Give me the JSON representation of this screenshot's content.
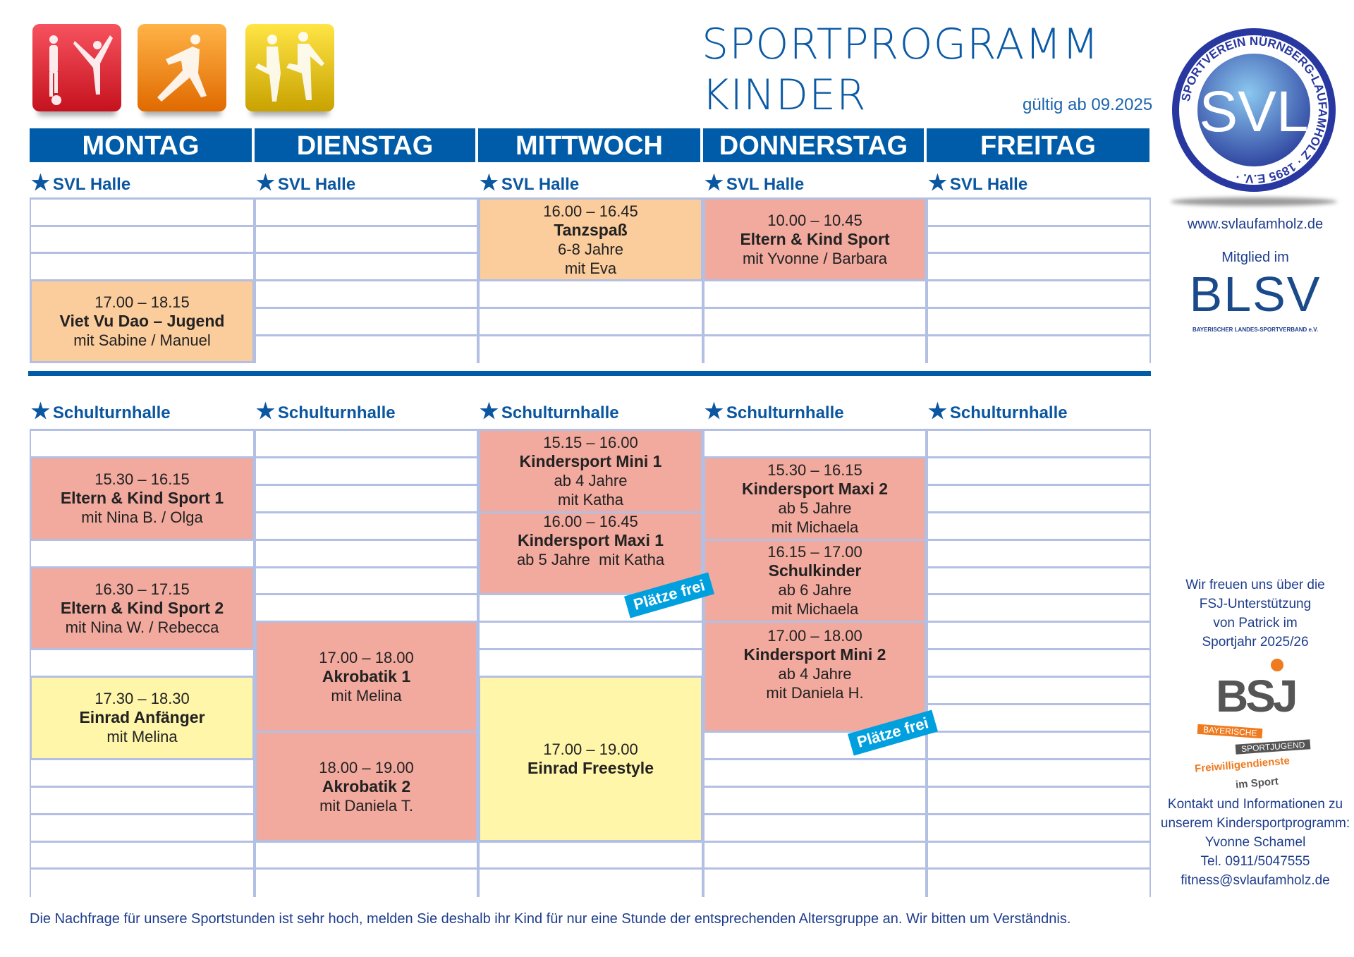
{
  "header": {
    "title_line1": "SPORTPROGRAMM",
    "title_line2": "KINDER",
    "valid_from": "gültig ab 09.2025"
  },
  "days": [
    "MONTAG",
    "DIENSTAG",
    "MITTWOCH",
    "DONNERSTAG",
    "FREITAG"
  ],
  "venues": {
    "upper": "SVL Halle",
    "lower": "Schulturnhalle"
  },
  "colors": {
    "header_blue": "#005ca8",
    "salmon": "#f2a99e",
    "peach": "#fbcc9c",
    "yellow": "#fff6aa",
    "badge": "#00a0de"
  },
  "upper_events": [
    {
      "day": "MONTAG",
      "time": "17.00 – 18.15",
      "name": "Viet Vu Dao – Jugend",
      "lines": [
        "mit Sabine / Manuel"
      ],
      "color": "peach"
    },
    {
      "day": "MITTWOCH",
      "time": "16.00 – 16.45",
      "name": "Tanzspaß",
      "lines": [
        "6-8 Jahre",
        "mit Eva"
      ],
      "color": "peach"
    },
    {
      "day": "DONNERSTAG",
      "time": "10.00 – 10.45",
      "name": "Eltern & Kind Sport",
      "lines": [
        "mit Yvonne / Barbara"
      ],
      "color": "salmon"
    }
  ],
  "lower_events": [
    {
      "day": "MONTAG",
      "time": "15.30 – 16.15",
      "name": "Eltern & Kind Sport 1",
      "lines": [
        "mit Nina B. / Olga"
      ],
      "color": "salmon"
    },
    {
      "day": "MONTAG",
      "time": "16.30 – 17.15",
      "name": "Eltern & Kind Sport 2",
      "lines": [
        "mit Nina W. / Rebecca"
      ],
      "color": "salmon"
    },
    {
      "day": "MONTAG",
      "time": "17.30 – 18.30",
      "name": "Einrad Anfänger",
      "lines": [
        "mit Melina"
      ],
      "color": "yellow"
    },
    {
      "day": "DIENSTAG",
      "time": "17.00 – 18.00",
      "name": "Akrobatik 1",
      "lines": [
        "mit Melina"
      ],
      "color": "salmon"
    },
    {
      "day": "DIENSTAG",
      "time": "18.00 – 19.00",
      "name": "Akrobatik 2",
      "lines": [
        "mit Daniela T."
      ],
      "color": "salmon"
    },
    {
      "day": "MITTWOCH",
      "time": "15.15 – 16.00",
      "name": "Kindersport Mini 1",
      "lines": [
        "ab 4 Jahre",
        "mit Katha"
      ],
      "color": "salmon"
    },
    {
      "day": "MITTWOCH",
      "time": "16.00 – 16.45",
      "name": "Kindersport Maxi 1",
      "lines": [
        "ab 5 Jahre  mit Katha"
      ],
      "color": "salmon",
      "badge": "Plätze frei"
    },
    {
      "day": "MITTWOCH",
      "time": "17.00 – 19.00",
      "name": "Einrad Freestyle",
      "lines": [],
      "color": "yellow"
    },
    {
      "day": "DONNERSTAG",
      "time": "15.30 – 16.15",
      "name": "Kindersport  Maxi 2",
      "lines": [
        "ab 5 Jahre",
        "mit Michaela"
      ],
      "color": "salmon"
    },
    {
      "day": "DONNERSTAG",
      "time": "16.15 – 17.00",
      "name": "Schulkinder",
      "lines": [
        "ab 6 Jahre",
        "mit Michaela"
      ],
      "color": "salmon"
    },
    {
      "day": "DONNERSTAG",
      "time": "17.00 – 18.00",
      "name": "Kindersport Mini 2",
      "lines": [
        "ab 4 Jahre",
        "mit Daniela H."
      ],
      "color": "salmon",
      "badge": "Plätze frei"
    }
  ],
  "sidebar": {
    "logo_ring_text": "SPORTVEREIN NÜRNBERG-LAUFAMHOLZ · 1895 E.V. ·",
    "logo_text": "SVL",
    "website": "www.svlaufamholz.de",
    "member_label": "Mitglied im",
    "blsv_logo": "BLSV",
    "blsv_subtitle": "BAYERISCHER LANDES-SPORTVERBAND e.V.",
    "fsj_lines": [
      "Wir freuen uns über die",
      "FSJ-Unterstützung",
      "von Patrick im",
      "Sportjahr 2025/26"
    ],
    "bsj_logo": "BSJ",
    "bsj_sub1": "BAYERISCHE",
    "bsj_sub2": "SPORTJUGEND",
    "bsj_sub3": "Freiwilligendienste",
    "bsj_sub4": "im Sport",
    "contact_lines": [
      "Kontakt und Informationen zu",
      "unserem Kindersportprogramm:",
      "Yvonne Schamel",
      "Tel. 0911/5047555",
      "fitness@svlaufamholz.de"
    ]
  },
  "footer": "Die Nachfrage für unsere Sportstunden ist sehr hoch, melden Sie deshalb ihr Kind für nur eine Stunde der entsprechenden Altersgruppe an. Wir bitten um Verständnis."
}
